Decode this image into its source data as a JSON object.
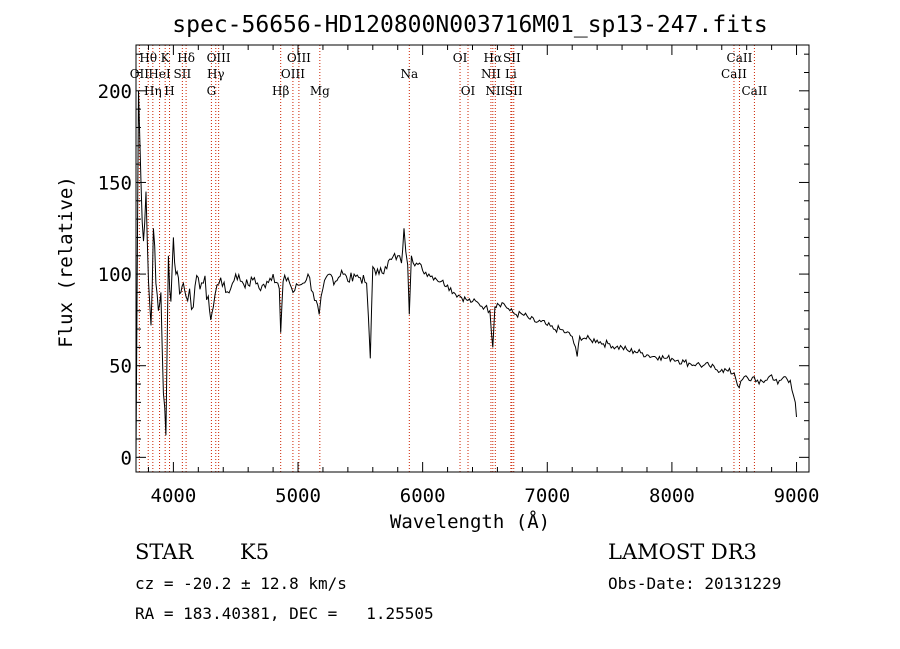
{
  "chart_data": {
    "type": "line",
    "title": "spec-56656-HD120800N003716M01_sp13-247.fits",
    "xlabel": "Wavelength (Å)",
    "ylabel": "Flux (relative)",
    "xlim": [
      3700,
      9100
    ],
    "ylim": [
      -8,
      225
    ],
    "xticks": [
      4000,
      5000,
      6000,
      7000,
      8000,
      9000
    ],
    "yticks": [
      0,
      50,
      100,
      150,
      200
    ],
    "series": [
      {
        "name": "flux",
        "x": [
          3700,
          3720,
          3740,
          3760,
          3780,
          3800,
          3820,
          3840,
          3860,
          3880,
          3900,
          3920,
          3940,
          3960,
          3980,
          4000,
          4020,
          4040,
          4060,
          4080,
          4100,
          4130,
          4160,
          4200,
          4240,
          4280,
          4300,
          4320,
          4350,
          4380,
          4420,
          4460,
          4500,
          4550,
          4600,
          4650,
          4700,
          4750,
          4800,
          4850,
          4861,
          4880,
          4920,
          4960,
          5000,
          5040,
          5080,
          5120,
          5170,
          5200,
          5250,
          5300,
          5350,
          5400,
          5450,
          5500,
          5550,
          5580,
          5600,
          5650,
          5700,
          5750,
          5800,
          5830,
          5850,
          5880,
          5893,
          5910,
          5950,
          6000,
          6050,
          6100,
          6150,
          6200,
          6250,
          6300,
          6350,
          6400,
          6450,
          6500,
          6540,
          6563,
          6580,
          6600,
          6650,
          6700,
          6750,
          6800,
          6850,
          6900,
          6950,
          7000,
          7050,
          7100,
          7150,
          7200,
          7240,
          7260,
          7300,
          7350,
          7400,
          7450,
          7500,
          7550,
          7600,
          7650,
          7700,
          7750,
          7800,
          7850,
          7900,
          7950,
          8000,
          8050,
          8100,
          8150,
          8200,
          8250,
          8300,
          8350,
          8400,
          8450,
          8500,
          8540,
          8580,
          8620,
          8660,
          8700,
          8750,
          8800,
          8850,
          8900,
          8950,
          8990,
          9000
        ],
        "values": [
          0,
          200,
          150,
          118,
          145,
          96,
          72,
          125,
          95,
          80,
          90,
          35,
          12,
          110,
          85,
          120,
          100,
          98,
          90,
          95,
          88,
          92,
          82,
          98,
          95,
          88,
          75,
          82,
          94,
          98,
          90,
          92,
          100,
          96,
          94,
          98,
          91,
          96,
          100,
          92,
          68,
          96,
          98,
          90,
          94,
          95,
          100,
          90,
          78,
          92,
          100,
          96,
          102,
          96,
          100,
          98,
          95,
          54,
          104,
          100,
          104,
          108,
          110,
          106,
          125,
          105,
          78,
          110,
          106,
          102,
          100,
          98,
          96,
          94,
          90,
          88,
          86,
          85,
          84,
          82,
          80,
          60,
          82,
          84,
          84,
          80,
          78,
          78,
          76,
          74,
          74,
          72,
          70,
          70,
          68,
          66,
          55,
          66,
          65,
          64,
          64,
          62,
          62,
          60,
          60,
          58,
          58,
          57,
          56,
          55,
          55,
          54,
          54,
          53,
          52,
          51,
          51,
          50,
          50,
          48,
          48,
          47,
          46,
          38,
          44,
          42,
          44,
          40,
          42,
          45,
          40,
          44,
          42,
          30,
          22
        ]
      }
    ],
    "spectral_lines": [
      {
        "label": "Hθ",
        "wl": 3798,
        "row": 1
      },
      {
        "label": "OII",
        "wl": 3727,
        "row": 2
      },
      {
        "label": "Hη",
        "wl": 3835,
        "row": 3
      },
      {
        "label": "K",
        "wl": 3934,
        "row": 1
      },
      {
        "label": "HeI",
        "wl": 3889,
        "row": 2
      },
      {
        "label": "H",
        "wl": 3969,
        "row": 3
      },
      {
        "label": "Hδ",
        "wl": 4102,
        "row": 1
      },
      {
        "label": "SII",
        "wl": 4072,
        "row": 2
      },
      {
        "label": "OIII",
        "wl": 4363,
        "row": 1
      },
      {
        "label": "Hγ",
        "wl": 4340,
        "row": 2
      },
      {
        "label": "G",
        "wl": 4305,
        "row": 3
      },
      {
        "label": "Hβ",
        "wl": 4861,
        "row": 3
      },
      {
        "label": "OIII",
        "wl": 5007,
        "row": 1
      },
      {
        "label": "OIII",
        "wl": 4959,
        "row": 2
      },
      {
        "label": "Mg",
        "wl": 5175,
        "row": 3
      },
      {
        "label": "Na",
        "wl": 5893,
        "row": 2
      },
      {
        "label": "OI",
        "wl": 6300,
        "row": 1
      },
      {
        "label": "OI",
        "wl": 6364,
        "row": 3
      },
      {
        "label": "Hα",
        "wl": 6563,
        "row": 1
      },
      {
        "label": "SII",
        "wl": 6716,
        "row": 1
      },
      {
        "label": "NII",
        "wl": 6548,
        "row": 2
      },
      {
        "label": "Li",
        "wl": 6708,
        "row": 2
      },
      {
        "label": "NII",
        "wl": 6583,
        "row": 3
      },
      {
        "label": "SII",
        "wl": 6731,
        "row": 3
      },
      {
        "label": "CaII",
        "wl": 8542,
        "row": 1
      },
      {
        "label": "CaII",
        "wl": 8498,
        "row": 2
      },
      {
        "label": "CaII",
        "wl": 8662,
        "row": 3
      }
    ]
  },
  "info": {
    "class": "STAR",
    "subclass": "K5",
    "survey": "LAMOST DR3",
    "redshift": "cz = -20.2 ± 12.8 km/s",
    "obs_date": "Obs-Date: 20131229",
    "coords": "RA = 183.40381, DEC =   1.25505"
  },
  "colors": {
    "line_marker": "#cc2200",
    "spectrum": "#000000"
  }
}
